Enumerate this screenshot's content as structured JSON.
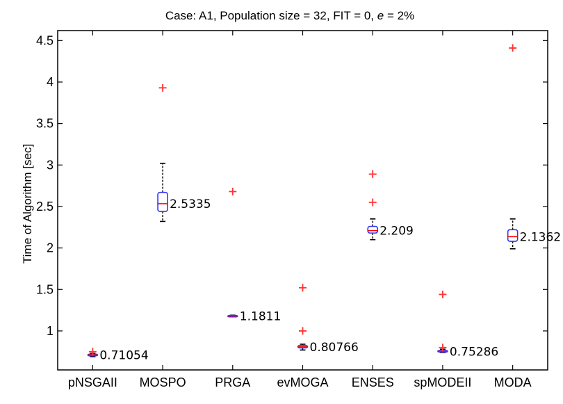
{
  "chart_data": {
    "type": "box",
    "title_parts": {
      "prefix": "Case: A1, Population size = 32, FIT = 0, ",
      "italic": "e",
      "suffix": " = 2%"
    },
    "xlabel": "",
    "ylabel": "Time of Algorithm [sec]",
    "ylim": [
      0.53,
      4.62
    ],
    "yticks": [
      "1",
      "1.5",
      "2",
      "2.5",
      "3",
      "3.5",
      "4",
      "4.5"
    ],
    "grid": false,
    "categories": [
      "pNSGAII",
      "MOSPO",
      "PRGA",
      "evMOGA",
      "ENSES",
      "spMODEII",
      "MODA"
    ],
    "boxes": [
      {
        "name": "pNSGAII",
        "median": 0.71054,
        "median_label": "0.71054",
        "q1": 0.7,
        "q3": 0.72,
        "whisker_low": 0.69,
        "whisker_high": 0.73,
        "outliers": [
          0.75
        ]
      },
      {
        "name": "MOSPO",
        "median": 2.5335,
        "median_label": "2.5335",
        "q1": 2.44,
        "q3": 2.67,
        "whisker_low": 2.32,
        "whisker_high": 3.02,
        "outliers": [
          3.93
        ]
      },
      {
        "name": "PRGA",
        "median": 1.1811,
        "median_label": "1.1811",
        "q1": 1.178,
        "q3": 1.186,
        "whisker_low": 1.17,
        "whisker_high": 1.19,
        "outliers": [
          2.68
        ]
      },
      {
        "name": "evMOGA",
        "median": 0.80766,
        "median_label": "0.80766",
        "q1": 0.795,
        "q3": 0.825,
        "whisker_low": 0.77,
        "whisker_high": 0.84,
        "outliers": [
          1.0,
          1.52
        ]
      },
      {
        "name": "ENSES",
        "median": 2.209,
        "median_label": "2.209",
        "q1": 2.18,
        "q3": 2.26,
        "whisker_low": 2.1,
        "whisker_high": 2.35,
        "outliers": [
          2.55,
          2.89
        ]
      },
      {
        "name": "spMODEII",
        "median": 0.75286,
        "median_label": "0.75286",
        "q1": 0.745,
        "q3": 0.765,
        "whisker_low": 0.74,
        "whisker_high": 0.78,
        "outliers": [
          0.8,
          1.44
        ]
      },
      {
        "name": "MODA",
        "median": 2.1362,
        "median_label": "2.1362",
        "q1": 2.08,
        "q3": 2.22,
        "whisker_low": 1.99,
        "whisker_high": 2.35,
        "outliers": [
          4.41
        ]
      }
    ],
    "colors": {
      "box": "#3333ff",
      "median": "#ff0000",
      "outlier": "#ff3333",
      "whisker": "#000000"
    }
  }
}
